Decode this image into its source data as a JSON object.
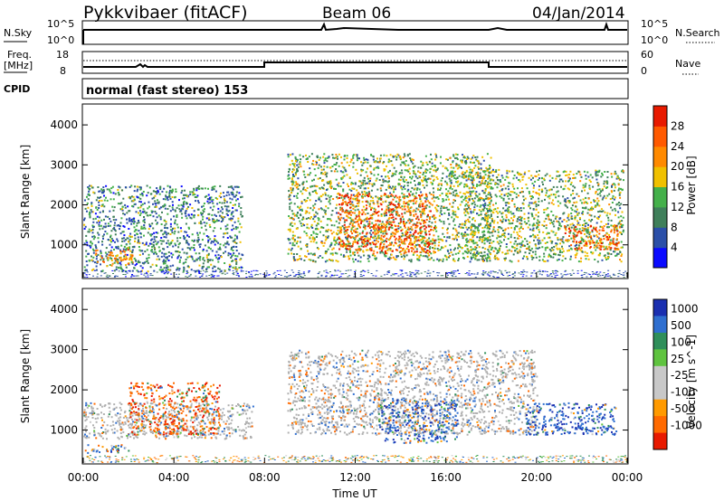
{
  "header": {
    "station": "Pykkvibaer (fitACF)",
    "beam": "Beam 06",
    "date": "04/Jan/2014"
  },
  "panel_labels": {
    "nsky": "N.Sky",
    "nsky_hi": "10^5",
    "nsky_lo": "10^0",
    "nsearch": "N.Search",
    "nsearch_hi": "10^5",
    "nsearch_lo": "10^0",
    "freq_l1": "Freq.",
    "freq_l2": "[MHz]",
    "freq_hi": "18",
    "freq_lo": "8",
    "nave": "Nave",
    "nave_hi": "60",
    "nave_lo": "0",
    "cpid": "CPID",
    "cpid_value": "normal (fast stereo) 153"
  },
  "colors": {
    "power": [
      "#0a0aff",
      "#2b4fa8",
      "#3f7f5a",
      "#44b04a",
      "#f0c000",
      "#ff8a00",
      "#ff5a00",
      "#e81a00"
    ],
    "velocity": [
      "#1a2fb0",
      "#2f6fd0",
      "#2f8f5a",
      "#5fc33f",
      "#c8c8c8",
      "#c8c8c8",
      "#ff9a00",
      "#ff6a00",
      "#e81a00"
    ],
    "ground": "#b0b0b0"
  },
  "chart_data": [
    {
      "type": "heatmap",
      "panel": "power",
      "ylabel": "Slant Range [km]",
      "x_range_hours": [
        0,
        24
      ],
      "ylim": [
        180,
        4500
      ],
      "yticks": [
        "1000",
        "2000",
        "3000",
        "4000"
      ],
      "colorbar": {
        "label": "Power [dB]",
        "ticks": [
          "4",
          "8",
          "12",
          "16",
          "20",
          "24",
          "28"
        ]
      },
      "echo_regions": [
        {
          "t0": 0.0,
          "t1": 7.0,
          "r0": 350,
          "r1": 2500,
          "mean_power_db": 10
        },
        {
          "t0": 0.5,
          "t1": 2.2,
          "r0": 500,
          "r1": 900,
          "mean_power_db": 22
        },
        {
          "t0": 9.0,
          "t1": 18.0,
          "r0": 600,
          "r1": 3300,
          "mean_power_db": 14
        },
        {
          "t0": 11.2,
          "t1": 15.5,
          "r0": 800,
          "r1": 2300,
          "mean_power_db": 26
        },
        {
          "t0": 16.8,
          "t1": 23.8,
          "r0": 600,
          "r1": 2900,
          "mean_power_db": 14
        },
        {
          "t0": 21.2,
          "t1": 23.6,
          "r0": 900,
          "r1": 1500,
          "mean_power_db": 26
        }
      ]
    },
    {
      "type": "heatmap",
      "panel": "velocity",
      "ylabel": "Slant Range [km]",
      "xlabel": "Time UT",
      "x_range_hours": [
        0,
        24
      ],
      "ylim": [
        180,
        4500
      ],
      "yticks": [
        "1000",
        "2000",
        "3000",
        "4000"
      ],
      "xticks": [
        "00:00",
        "04:00",
        "08:00",
        "12:00",
        "16:00",
        "20:00",
        "00:00"
      ],
      "colorbar": {
        "label": "Velocity [m s^-1]",
        "ticks": [
          "1000",
          "500",
          "100",
          "25",
          "-25",
          "-100",
          "-500",
          "-1000"
        ]
      },
      "echo_regions": [
        {
          "t0": 0.0,
          "t1": 7.5,
          "r0": 800,
          "r1": 1700,
          "mean_velocity_ms": 0,
          "ground_scatter": true
        },
        {
          "t0": 0.0,
          "t1": 2.2,
          "r0": 450,
          "r1": 650,
          "mean_velocity_ms": 150
        },
        {
          "t0": 2.0,
          "t1": 6.0,
          "r0": 900,
          "r1": 2200,
          "mean_velocity_ms": -300
        },
        {
          "t0": 9.0,
          "t1": 20.0,
          "r0": 900,
          "r1": 3000,
          "mean_velocity_ms": 0,
          "ground_scatter": true
        },
        {
          "t0": 13.0,
          "t1": 16.5,
          "r0": 700,
          "r1": 1800,
          "mean_velocity_ms": 300
        },
        {
          "t0": 19.5,
          "t1": 23.5,
          "r0": 900,
          "r1": 1700,
          "mean_velocity_ms": 400
        }
      ]
    }
  ]
}
